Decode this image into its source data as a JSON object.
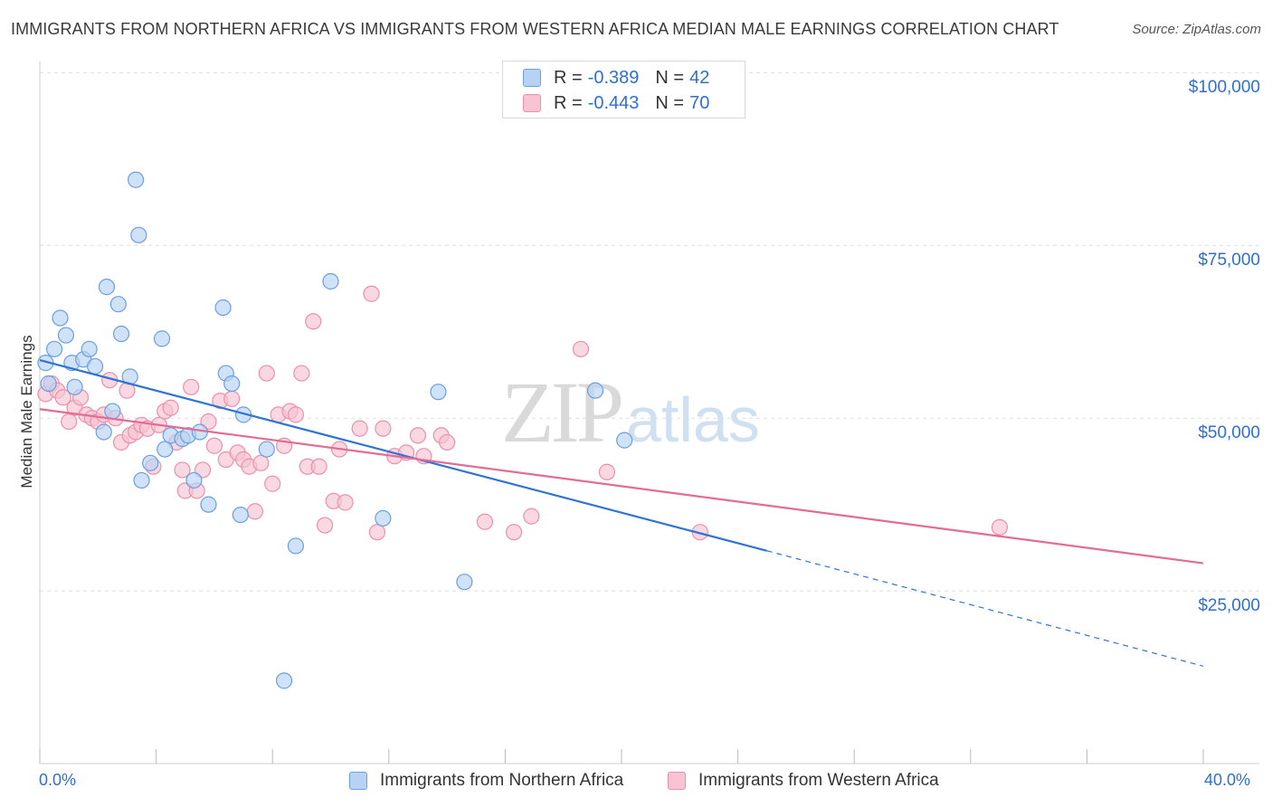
{
  "title": "IMMIGRANTS FROM NORTHERN AFRICA VS IMMIGRANTS FROM WESTERN AFRICA MEDIAN MALE EARNINGS CORRELATION CHART",
  "source": "Source: ZipAtlas.com",
  "watermark": {
    "zip": "ZIP",
    "atlas": "atlas"
  },
  "legend_top": {
    "rows": [
      {
        "r_label": "R =",
        "r_value": "-0.389",
        "n_label": "N =",
        "n_value": "42"
      },
      {
        "r_label": "R =",
        "r_value": "-0.443",
        "n_label": "N =",
        "n_value": "70"
      }
    ]
  },
  "colors": {
    "blue_fill": "#b7d2f2",
    "blue_stroke": "#6a9fe0",
    "blue_line": "#2e74d6",
    "pink_fill": "#f8c3d3",
    "pink_stroke": "#ec8fac",
    "pink_line": "#e36b95",
    "axis_text": "#2e6fd0",
    "grid": "#dedede"
  },
  "chart_data": {
    "type": "scatter",
    "title": "IMMIGRANTS FROM NORTHERN AFRICA VS IMMIGRANTS FROM WESTERN AFRICA MEDIAN MALE EARNINGS CORRELATION CHART",
    "xlabel": "",
    "ylabel": "Median Male Earnings",
    "x_tick_labels": [
      "0.0%",
      "40.0%"
    ],
    "y_tick_labels": [
      "$25,000",
      "$50,000",
      "$75,000",
      "$100,000"
    ],
    "y_ticks": [
      25000,
      50000,
      75000,
      100000
    ],
    "xlim": [
      0,
      40
    ],
    "ylim": [
      0,
      102000
    ],
    "grid": true,
    "legend_placement": "bottom",
    "series": [
      {
        "name": "Immigrants from Northern Africa",
        "color": "#6a9fe0",
        "r": -0.389,
        "n": 42,
        "trend": {
          "x": [
            0,
            25
          ],
          "y": [
            58400,
            30800
          ],
          "dashed_to": [
            40,
            14100
          ]
        },
        "points": [
          [
            0.2,
            58000
          ],
          [
            0.5,
            60000
          ],
          [
            0.7,
            64500
          ],
          [
            0.9,
            62000
          ],
          [
            1.1,
            58000
          ],
          [
            1.5,
            58500
          ],
          [
            1.7,
            60000
          ],
          [
            1.9,
            57500
          ],
          [
            2.2,
            48000
          ],
          [
            2.3,
            69000
          ],
          [
            2.5,
            51000
          ],
          [
            2.7,
            66500
          ],
          [
            2.8,
            62200
          ],
          [
            3.1,
            56000
          ],
          [
            3.3,
            84500
          ],
          [
            3.4,
            76500
          ],
          [
            3.5,
            41000
          ],
          [
            3.8,
            43500
          ],
          [
            4.2,
            61500
          ],
          [
            4.3,
            45500
          ],
          [
            4.5,
            47500
          ],
          [
            4.9,
            47000
          ],
          [
            5.1,
            47500
          ],
          [
            5.3,
            41000
          ],
          [
            5.5,
            48000
          ],
          [
            5.8,
            37500
          ],
          [
            6.3,
            66000
          ],
          [
            6.4,
            56500
          ],
          [
            6.6,
            55000
          ],
          [
            6.9,
            36000
          ],
          [
            7.0,
            50500
          ],
          [
            7.8,
            45500
          ],
          [
            8.4,
            12000
          ],
          [
            8.8,
            31500
          ],
          [
            10.0,
            69800
          ],
          [
            11.8,
            35500
          ],
          [
            13.7,
            53800
          ],
          [
            14.6,
            26300
          ],
          [
            19.1,
            54000
          ],
          [
            20.1,
            46800
          ],
          [
            0.3,
            55000
          ],
          [
            1.2,
            54500
          ]
        ]
      },
      {
        "name": "Immigrants from Western Africa",
        "color": "#ec8fac",
        "r": -0.443,
        "n": 70,
        "trend": {
          "x": [
            0,
            40
          ],
          "y": [
            51300,
            29000
          ]
        },
        "points": [
          [
            0.2,
            53500
          ],
          [
            0.4,
            55000
          ],
          [
            0.6,
            54000
          ],
          [
            0.8,
            53000
          ],
          [
            1.0,
            49500
          ],
          [
            1.2,
            51500
          ],
          [
            1.4,
            53000
          ],
          [
            1.6,
            50500
          ],
          [
            1.8,
            50000
          ],
          [
            2.0,
            49500
          ],
          [
            2.2,
            50500
          ],
          [
            2.4,
            55500
          ],
          [
            2.6,
            50000
          ],
          [
            2.8,
            46500
          ],
          [
            3.0,
            54000
          ],
          [
            3.1,
            47500
          ],
          [
            3.3,
            48000
          ],
          [
            3.5,
            49000
          ],
          [
            3.7,
            48500
          ],
          [
            3.9,
            43000
          ],
          [
            4.1,
            49000
          ],
          [
            4.3,
            51000
          ],
          [
            4.5,
            51500
          ],
          [
            4.7,
            46500
          ],
          [
            4.9,
            42500
          ],
          [
            5.0,
            39500
          ],
          [
            5.2,
            54500
          ],
          [
            5.4,
            39500
          ],
          [
            5.6,
            42500
          ],
          [
            5.8,
            49500
          ],
          [
            6.0,
            46000
          ],
          [
            6.2,
            52500
          ],
          [
            6.4,
            44000
          ],
          [
            6.6,
            52800
          ],
          [
            6.8,
            45000
          ],
          [
            7.0,
            44000
          ],
          [
            7.2,
            43000
          ],
          [
            7.4,
            36500
          ],
          [
            7.6,
            43500
          ],
          [
            7.8,
            56500
          ],
          [
            8.0,
            40500
          ],
          [
            8.2,
            50500
          ],
          [
            8.4,
            46000
          ],
          [
            8.6,
            51000
          ],
          [
            8.8,
            50500
          ],
          [
            9.0,
            56500
          ],
          [
            9.2,
            43000
          ],
          [
            9.4,
            64000
          ],
          [
            9.6,
            43000
          ],
          [
            9.8,
            34500
          ],
          [
            10.1,
            38000
          ],
          [
            10.3,
            45500
          ],
          [
            10.5,
            37800
          ],
          [
            11.0,
            48500
          ],
          [
            11.4,
            68000
          ],
          [
            11.6,
            33500
          ],
          [
            11.8,
            48500
          ],
          [
            12.2,
            44500
          ],
          [
            12.6,
            45000
          ],
          [
            13.0,
            47500
          ],
          [
            13.2,
            44500
          ],
          [
            13.8,
            47500
          ],
          [
            14.0,
            46500
          ],
          [
            15.3,
            35000
          ],
          [
            16.3,
            33500
          ],
          [
            16.9,
            35800
          ],
          [
            18.6,
            60000
          ],
          [
            19.5,
            42200
          ],
          [
            22.7,
            33500
          ],
          [
            33.0,
            34200
          ]
        ]
      }
    ]
  },
  "bottom_legend": {
    "items": [
      "Immigrants from Northern Africa",
      "Immigrants from Western Africa"
    ]
  }
}
